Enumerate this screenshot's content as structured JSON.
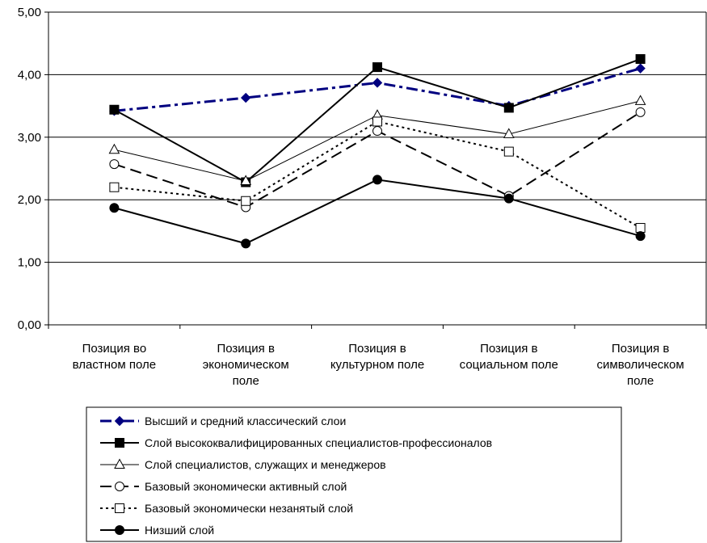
{
  "chart_data": {
    "type": "line",
    "categories": [
      [
        "Позиция во",
        "властном поле"
      ],
      [
        "Позиция в",
        "экономическом",
        "поле"
      ],
      [
        "Позиция в",
        "культурном поле"
      ],
      [
        "Позиция в",
        "социальном поле"
      ],
      [
        "Позиция в",
        "символическом",
        "поле"
      ]
    ],
    "ylim": [
      0,
      5
    ],
    "yticks": [
      "0,00",
      "1,00",
      "2,00",
      "3,00",
      "4,00",
      "5,00"
    ],
    "grid": true,
    "legend_position": "bottom",
    "series": [
      {
        "name": "Высший и средний классический слои",
        "values": [
          3.42,
          3.63,
          3.87,
          3.5,
          4.1
        ],
        "color": "#000080",
        "line": "dashdot",
        "width": 3,
        "marker": "diamond"
      },
      {
        "name": "Слой высококвалифицированных специалистов-профессионалов",
        "values": [
          3.44,
          2.28,
          4.12,
          3.47,
          4.25
        ],
        "color": "#000000",
        "line": "solid",
        "width": 2,
        "marker": "square-filled"
      },
      {
        "name": "Слой специалистов, служащих и менеджеров",
        "values": [
          2.8,
          2.3,
          3.35,
          3.05,
          3.58
        ],
        "color": "#000000",
        "line": "solid",
        "width": 1,
        "marker": "triangle-open"
      },
      {
        "name": "Базовый экономически активный слой",
        "values": [
          2.57,
          1.88,
          3.1,
          2.06,
          3.4
        ],
        "color": "#000000",
        "line": "longdash",
        "width": 2,
        "marker": "circle-open"
      },
      {
        "name": "Базовый экономически незанятый слой",
        "values": [
          2.2,
          1.98,
          3.25,
          2.77,
          1.55
        ],
        "color": "#000000",
        "line": "dotted",
        "width": 2,
        "marker": "square-open"
      },
      {
        "name": "Низший слой",
        "values": [
          1.87,
          1.3,
          2.32,
          2.02,
          1.42
        ],
        "color": "#000000",
        "line": "solid",
        "width": 2,
        "marker": "circle-filled"
      }
    ]
  }
}
